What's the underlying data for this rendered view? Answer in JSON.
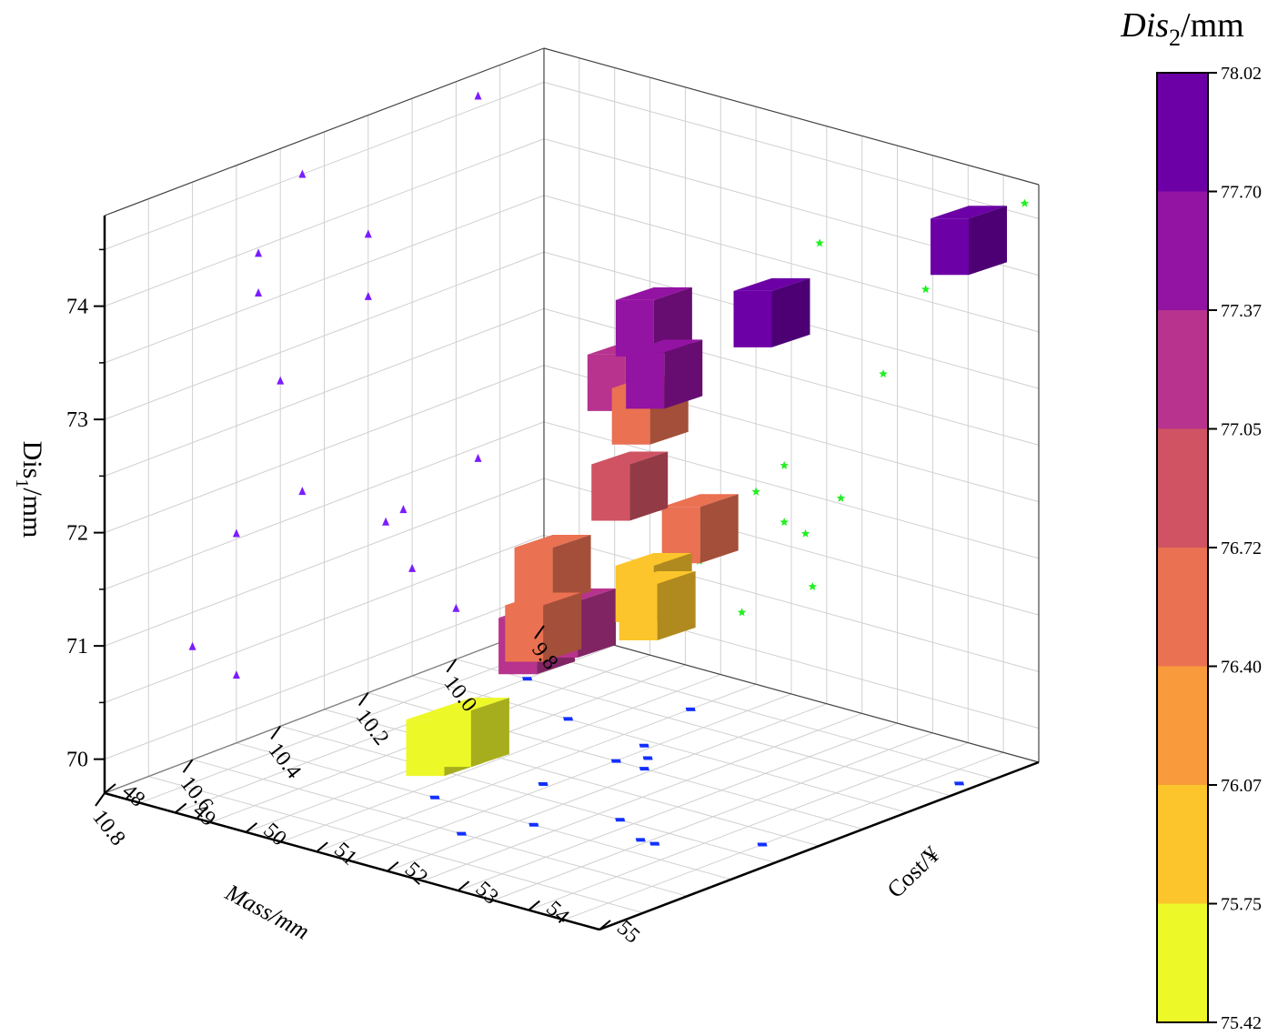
{
  "chart_data": {
    "type": "scatter",
    "subtype": "3d-cube-scatter-with-wall-projections",
    "title": "",
    "axes": {
      "x": {
        "label": "Mass/mm",
        "range": [
          9.8,
          10.8
        ],
        "ticks": [
          "9.8",
          "10.0",
          "10.2",
          "10.4",
          "10.6",
          "10.8"
        ]
      },
      "y": {
        "label": "Cost/¥",
        "range": [
          48,
          55
        ],
        "ticks": [
          "48",
          "49",
          "50",
          "51",
          "52",
          "53",
          "54",
          "55"
        ]
      },
      "z": {
        "label_main": "Dis",
        "label_sub": "1",
        "label_unit": "/mm",
        "range": [
          69.7,
          74.8
        ],
        "ticks": [
          "70",
          "71",
          "72",
          "73",
          "74"
        ]
      }
    },
    "colorbar": {
      "title_main": "Dis",
      "title_sub": "2",
      "title_unit": "/mm",
      "range": [
        75.42,
        78.02
      ],
      "labels": [
        "78.02",
        "77.70",
        "77.37",
        "77.05",
        "76.72",
        "76.40",
        "76.07",
        "75.75",
        "75.42"
      ],
      "bands_top_to_bottom": [
        "#6c00a6",
        "#9313a2",
        "#b7338e",
        "#d05363",
        "#ea7152",
        "#f99b3c",
        "#fbc52b",
        "#edf829"
      ]
    },
    "points": [
      {
        "mass": 9.95,
        "cost": 54.8,
        "dis1": 74.6,
        "dis2": 77.95
      },
      {
        "mass": 10.2,
        "cost": 51.9,
        "dis1": 73.75,
        "dis2": 77.55
      },
      {
        "mass": 10.2,
        "cost": 51.5,
        "dis1": 73.2,
        "dis2": 77.15
      },
      {
        "mass": 10.35,
        "cost": 54.5,
        "dis1": 74.5,
        "dis2": 77.95
      },
      {
        "mass": 10.45,
        "cost": 53.6,
        "dis1": 73.95,
        "dis2": 77.55
      },
      {
        "mass": 10.45,
        "cost": 53.4,
        "dis1": 73.6,
        "dis2": 76.65
      },
      {
        "mass": 10.4,
        "cost": 52.8,
        "dis1": 72.75,
        "dis2": 76.95
      },
      {
        "mass": 10.35,
        "cost": 51.4,
        "dis1": 71.7,
        "dis2": 76.7
      },
      {
        "mass": 10.5,
        "cost": 52.2,
        "dis1": 71.55,
        "dis2": 76.65
      },
      {
        "mass": 10.6,
        "cost": 51.8,
        "dis1": 70.7,
        "dis2": 75.5
      },
      {
        "mass": 10.5,
        "cost": 50.8,
        "dis1": 70.3,
        "dis2": 75.55
      },
      {
        "mass": 9.95,
        "cost": 51.0,
        "dis1": 71.4,
        "dis2": 76.7
      },
      {
        "mass": 10.12,
        "cost": 51.4,
        "dis1": 71.2,
        "dis2": 75.98
      },
      {
        "mass": 10.16,
        "cost": 51.7,
        "dis1": 71.15,
        "dis2": 75.92
      },
      {
        "mass": 10.1,
        "cost": 50.2,
        "dis1": 70.65,
        "dis2": 77.3
      },
      {
        "mass": 10.0,
        "cost": 49.0,
        "dis1": 70.15,
        "dis2": 77.3
      }
    ]
  }
}
